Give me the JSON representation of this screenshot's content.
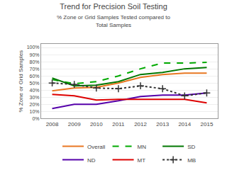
{
  "chart_data": {
    "type": "line",
    "title": "Trend for Precision Soil Testing",
    "subtitle": "% Zone or Grid Samples Tested compared to\nTotal Samples",
    "ylabel": "% Zone or Grid Samples",
    "x": [
      2008,
      2009,
      2010,
      2011,
      2012,
      2013,
      2014,
      2015
    ],
    "xlim": [
      2007.5,
      2015.5
    ],
    "xticks": [
      2008,
      2009,
      2010,
      2011,
      2012,
      2013,
      2014,
      2015
    ],
    "ylim": [
      0,
      105
    ],
    "yticks": [
      {
        "value": 0,
        "label": "0%"
      },
      {
        "value": 10,
        "label": "10%"
      },
      {
        "value": 20,
        "label": "20%"
      },
      {
        "value": 30,
        "label": "30%"
      },
      {
        "value": 40,
        "label": "40%"
      },
      {
        "value": 50,
        "label": "50%"
      },
      {
        "value": 60,
        "label": "60%"
      },
      {
        "value": 70,
        "label": "70%"
      },
      {
        "value": 80,
        "label": "80%"
      },
      {
        "value": 90,
        "label": "90%"
      },
      {
        "value": 100,
        "label": "100%"
      }
    ],
    "grid": true,
    "legend": "bottom",
    "series": [
      {
        "name": "Overall",
        "color": "#E87722",
        "line_style": "solid",
        "values": [
          39,
          43,
          44,
          50,
          58,
          62,
          64,
          64
        ]
      },
      {
        "name": "MN",
        "color": "#00AA00",
        "line_style": "dashed",
        "values": [
          55,
          49,
          52,
          60,
          70,
          78,
          78,
          79
        ]
      },
      {
        "name": "SD",
        "color": "#007700",
        "line_style": "solid",
        "values": [
          57,
          46,
          47,
          52,
          62,
          65,
          70,
          72
        ]
      },
      {
        "name": "ND",
        "color": "#5500AA",
        "line_style": "solid",
        "values": [
          14,
          20,
          20,
          25,
          31,
          33,
          33,
          36
        ]
      },
      {
        "name": "MT",
        "color": "#DD0000",
        "line_style": "solid",
        "values": [
          34,
          32,
          26,
          27,
          27,
          27,
          27,
          22
        ]
      },
      {
        "name": "MB",
        "color": "#333333",
        "line_style": "dotted",
        "marker": "+",
        "values": [
          50,
          48,
          43,
          42,
          46,
          42,
          32,
          36
        ]
      }
    ]
  }
}
